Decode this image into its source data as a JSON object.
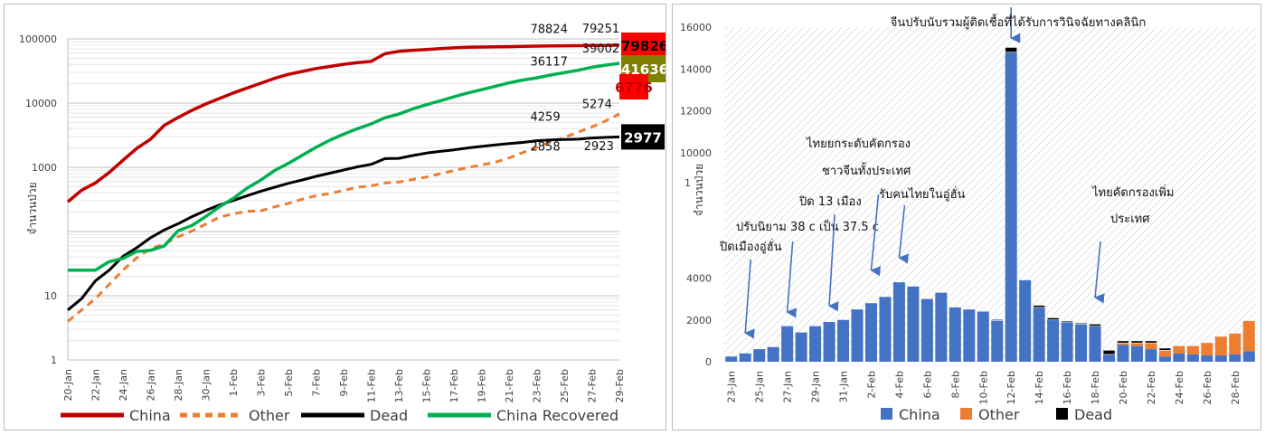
{
  "colors": {
    "china": "#c00000",
    "other": "#ed7d31",
    "dead": "#000000",
    "recovered": "#00b050",
    "bar_china": "#4472c4",
    "bar_other": "#ed7d31",
    "bar_dead": "#000000",
    "arrow": "#4472c4",
    "grid": "#d9d9d9"
  },
  "chart_data": [
    {
      "type": "line",
      "yscale": "log",
      "ylim": [
        1,
        100000
      ],
      "yticks": [
        1,
        10,
        1000,
        10000,
        100000
      ],
      "ylabel": "จำนวนป่วย",
      "xlabel": "",
      "grid": true,
      "legend_position": "bottom",
      "x": [
        "20-Jan",
        "21-Jan",
        "22-Jan",
        "23-Jan",
        "24-Jan",
        "25-Jan",
        "26-Jan",
        "27-Jan",
        "28-Jan",
        "29-Jan",
        "30-Jan",
        "31-Jan",
        "1-Feb",
        "2-Feb",
        "3-Feb",
        "4-Feb",
        "5-Feb",
        "6-Feb",
        "7-Feb",
        "8-Feb",
        "9-Feb",
        "10-Feb",
        "11-Feb",
        "12-Feb",
        "13-Feb",
        "14-Feb",
        "15-Feb",
        "16-Feb",
        "17-Feb",
        "18-Feb",
        "19-Feb",
        "20-Feb",
        "21-Feb",
        "22-Feb",
        "23-Feb",
        "24-Feb",
        "25-Feb",
        "26-Feb",
        "27-Feb",
        "28-Feb",
        "29-Feb"
      ],
      "x_tick_labels": [
        "20-Jan",
        "22-Jan",
        "24-Jan",
        "26-Jan",
        "28-Jan",
        "30-Jan",
        "1-Feb",
        "3-Feb",
        "5-Feb",
        "7-Feb",
        "9-Feb",
        "11-Feb",
        "13-Feb",
        "15-Feb",
        "17-Feb",
        "19-Feb",
        "21-Feb",
        "23-Feb",
        "25-Feb",
        "27-Feb",
        "29-Feb"
      ],
      "series": [
        {
          "name": "China",
          "values": [
            291,
            440,
            571,
            830,
            1287,
            1975,
            2744,
            4515,
            5974,
            7711,
            9692,
            11791,
            14380,
            17205,
            20438,
            24324,
            28018,
            31161,
            34546,
            37198,
            40171,
            42638,
            44653,
            58761,
            63851,
            66492,
            68500,
            70548,
            72436,
            74185,
            74576,
            75077,
            75550,
            76761,
            77150,
            77658,
            78064,
            78497,
            78824,
            79251,
            79826
          ]
        },
        {
          "name": "Other",
          "values": [
            4,
            6,
            9,
            15,
            25,
            39,
            54,
            64,
            83,
            102,
            130,
            168,
            189,
            206,
            210,
            242,
            274,
            318,
            361,
            390,
            436,
            490,
            514,
            570,
            590,
            645,
            705,
            794,
            890,
            990,
            1090,
            1200,
            1400,
            1700,
            2050,
            2450,
            2920,
            3530,
            4259,
            5274,
            6776
          ]
        },
        {
          "name": "Dead",
          "values": [
            6,
            9,
            17,
            25,
            41,
            56,
            80,
            106,
            132,
            170,
            213,
            259,
            304,
            361,
            425,
            490,
            563,
            636,
            722,
            811,
            908,
            1016,
            1113,
            1367,
            1380,
            1523,
            1665,
            1770,
            1868,
            2004,
            2118,
            2236,
            2345,
            2442,
            2592,
            2663,
            2715,
            2744,
            2858,
            2923,
            2977
          ]
        },
        {
          "name": "China Recovered",
          "values": [
            25,
            25,
            25,
            34,
            38,
            49,
            51,
            60,
            103,
            124,
            171,
            243,
            328,
            475,
            632,
            892,
            1153,
            1540,
            2050,
            2649,
            3281,
            3996,
            4740,
            5911,
            6723,
            8096,
            9419,
            10844,
            12552,
            14376,
            16155,
            18264,
            20659,
            22888,
            24734,
            27323,
            29745,
            32495,
            36117,
            39002,
            41636
          ]
        }
      ],
      "end_labels": {
        "china": "79826",
        "other": "6776",
        "dead": "2977",
        "recovered": "41636"
      },
      "point_labels": [
        {
          "series": "China",
          "x": "27-Feb",
          "text": "78824"
        },
        {
          "series": "China",
          "x": "28-Feb",
          "text": "79251"
        },
        {
          "series": "China Recovered",
          "x": "27-Feb",
          "text": "36117"
        },
        {
          "series": "China Recovered",
          "x": "28-Feb",
          "text": "39002"
        },
        {
          "series": "Other",
          "x": "27-Feb",
          "text": "4259"
        },
        {
          "series": "Other",
          "x": "28-Feb",
          "text": "5274"
        },
        {
          "series": "Dead",
          "x": "27-Feb",
          "text": "2858"
        },
        {
          "series": "Dead",
          "x": "28-Feb",
          "text": "2923"
        }
      ]
    },
    {
      "type": "bar",
      "stacked": true,
      "ylim": [
        0,
        16000
      ],
      "yticks": [
        0,
        2000,
        4000,
        10000,
        12000,
        14000,
        16000
      ],
      "ylabel": "จำนวนป่วย",
      "y_stray_label": "1",
      "xlabel": "",
      "grid": false,
      "legend_position": "bottom",
      "categories": [
        "23-Jan",
        "24-Jan",
        "25-Jan",
        "26-Jan",
        "27-Jan",
        "28-Jan",
        "29-Jan",
        "30-Jan",
        "31-Jan",
        "1-Feb",
        "2-Feb",
        "3-Feb",
        "4-Feb",
        "5-Feb",
        "6-Feb",
        "7-Feb",
        "8-Feb",
        "9-Feb",
        "10-Feb",
        "11-Feb",
        "12-Feb",
        "13-Feb",
        "14-Feb",
        "15-Feb",
        "16-Feb",
        "17-Feb",
        "18-Feb",
        "19-Feb",
        "20-Feb",
        "21-Feb",
        "22-Feb",
        "23-Feb",
        "24-Feb",
        "25-Feb",
        "26-Feb",
        "27-Feb",
        "28-Feb",
        "29-Feb"
      ],
      "x_tick_labels": [
        "23-Jan",
        "25-Jan",
        "27-Jan",
        "29-Jan",
        "31-Jan",
        "2-Feb",
        "4-Feb",
        "6-Feb",
        "8-Feb",
        "10-Feb",
        "12-Feb",
        "14-Feb",
        "16-Feb",
        "18-Feb",
        "20-Feb",
        "22-Feb",
        "24-Feb",
        "26-Feb",
        "28-Feb"
      ],
      "series": [
        {
          "name": "China",
          "values": [
            250,
            400,
            600,
            700,
            1700,
            1400,
            1700,
            1900,
            2000,
            2500,
            2800,
            3100,
            3800,
            3600,
            3000,
            3300,
            2600,
            2500,
            2400,
            2000,
            14800,
            3900,
            2600,
            2000,
            1900,
            1800,
            1700,
            350,
            800,
            750,
            600,
            250,
            400,
            350,
            300,
            300,
            350,
            500
          ]
        },
        {
          "name": "Other",
          "values": [
            0,
            0,
            0,
            0,
            0,
            0,
            0,
            0,
            0,
            0,
            0,
            0,
            0,
            0,
            0,
            0,
            0,
            0,
            0,
            0,
            0,
            0,
            0,
            0,
            0,
            0,
            0,
            0,
            100,
            150,
            300,
            300,
            350,
            400,
            600,
            900,
            1000,
            1450
          ]
        },
        {
          "name": "Dead",
          "values": [
            0,
            0,
            0,
            0,
            0,
            0,
            0,
            0,
            0,
            0,
            0,
            0,
            0,
            0,
            0,
            0,
            0,
            0,
            0,
            20,
            230,
            0,
            100,
            100,
            50,
            50,
            100,
            200,
            100,
            100,
            100,
            100,
            0,
            0,
            0,
            0,
            0,
            0
          ]
        }
      ],
      "annotations": [
        {
          "text": "ปิดเมืองอู่ฮั่น",
          "x": "24-Jan"
        },
        {
          "text": "ปรับนิยาม 38 c เป็น 37.5 c",
          "x": "27-Jan"
        },
        {
          "text": "ปิด 13 เมือง",
          "x": "30-Jan"
        },
        {
          "text": "ไทยยกระดับคัดกรอง",
          "x": "2-Feb"
        },
        {
          "text": "ชาวจีนทั้งประเทศ",
          "x": "2-Feb"
        },
        {
          "text": "รับคนไทยในอู่ฮั่น",
          "x": "4-Feb"
        },
        {
          "text": "จีนปรับนับรวมผู้ติดเชื้อที่ได้รับการวินิจฉัยทางคลินิก",
          "x": "12-Feb"
        },
        {
          "text": "ไทยคัดกรองเพิ่ม",
          "x": "18-Feb"
        },
        {
          "text": "ประเทศ",
          "x": "18-Feb"
        }
      ]
    }
  ]
}
